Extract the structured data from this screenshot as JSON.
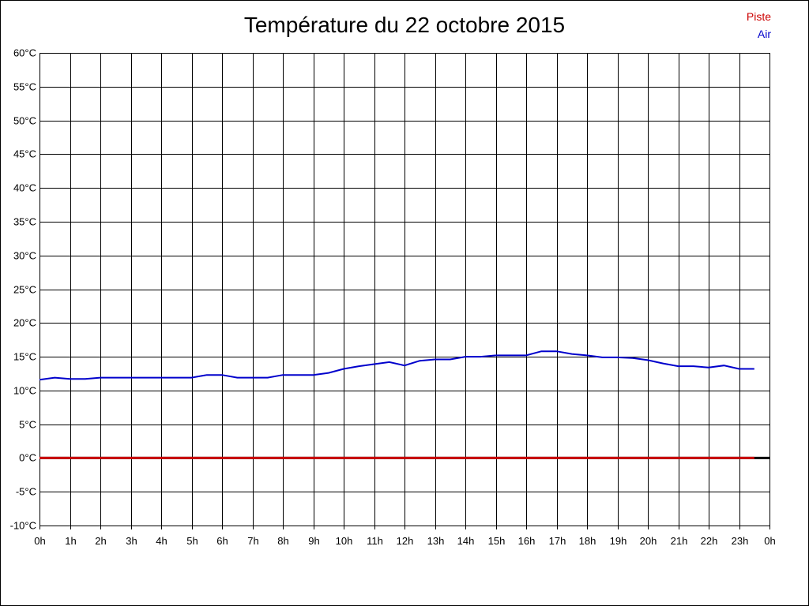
{
  "colors": {
    "background": "#ffffff",
    "grid": "#000000",
    "piste": "#cc0000",
    "air": "#0000cc"
  },
  "chart_data": {
    "type": "line",
    "title": "Température du 22 octobre 2015",
    "xlabel": "",
    "ylabel": "",
    "x_ticks": [
      "0h",
      "1h",
      "2h",
      "3h",
      "4h",
      "5h",
      "6h",
      "7h",
      "8h",
      "9h",
      "10h",
      "11h",
      "12h",
      "13h",
      "14h",
      "15h",
      "16h",
      "17h",
      "18h",
      "19h",
      "20h",
      "21h",
      "22h",
      "23h",
      "0h"
    ],
    "y_ticks": [
      "-10°C",
      "-5°C",
      "0°C",
      "5°C",
      "10°C",
      "15°C",
      "20°C",
      "25°C",
      "30°C",
      "35°C",
      "40°C",
      "45°C",
      "50°C",
      "55°C",
      "60°C"
    ],
    "xlim": [
      0,
      24
    ],
    "ylim": [
      -10,
      60
    ],
    "grid": true,
    "legend_position": "top-right",
    "series": [
      {
        "name": "Piste",
        "color": "#cc0000",
        "x": [
          0,
          23.5
        ],
        "y": [
          0,
          0
        ]
      },
      {
        "name": "Air",
        "color": "#0000cc",
        "x": [
          0,
          0.5,
          1,
          1.5,
          2,
          2.5,
          3,
          3.5,
          4,
          4.5,
          5,
          5.5,
          6,
          6.5,
          7,
          7.5,
          8,
          8.5,
          9,
          9.5,
          10,
          10.5,
          11,
          11.5,
          12,
          12.5,
          13,
          13.5,
          14,
          14.5,
          15,
          15.5,
          16,
          16.5,
          17,
          17.5,
          18,
          18.5,
          19,
          19.5,
          20,
          20.5,
          21,
          21.5,
          22,
          22.5,
          23,
          23.5
        ],
        "y": [
          11.6,
          11.9,
          11.7,
          11.7,
          11.9,
          11.9,
          11.9,
          11.9,
          11.9,
          11.9,
          11.9,
          12.3,
          12.3,
          11.9,
          11.9,
          11.9,
          12.3,
          12.3,
          12.3,
          12.6,
          13.2,
          13.6,
          13.9,
          14.2,
          13.7,
          14.4,
          14.6,
          14.6,
          15.0,
          15.0,
          15.2,
          15.2,
          15.2,
          15.8,
          15.8,
          15.4,
          15.2,
          14.9,
          14.9,
          14.8,
          14.5,
          14.0,
          13.6,
          13.6,
          13.4,
          13.7,
          13.2,
          13.2
        ]
      }
    ]
  }
}
